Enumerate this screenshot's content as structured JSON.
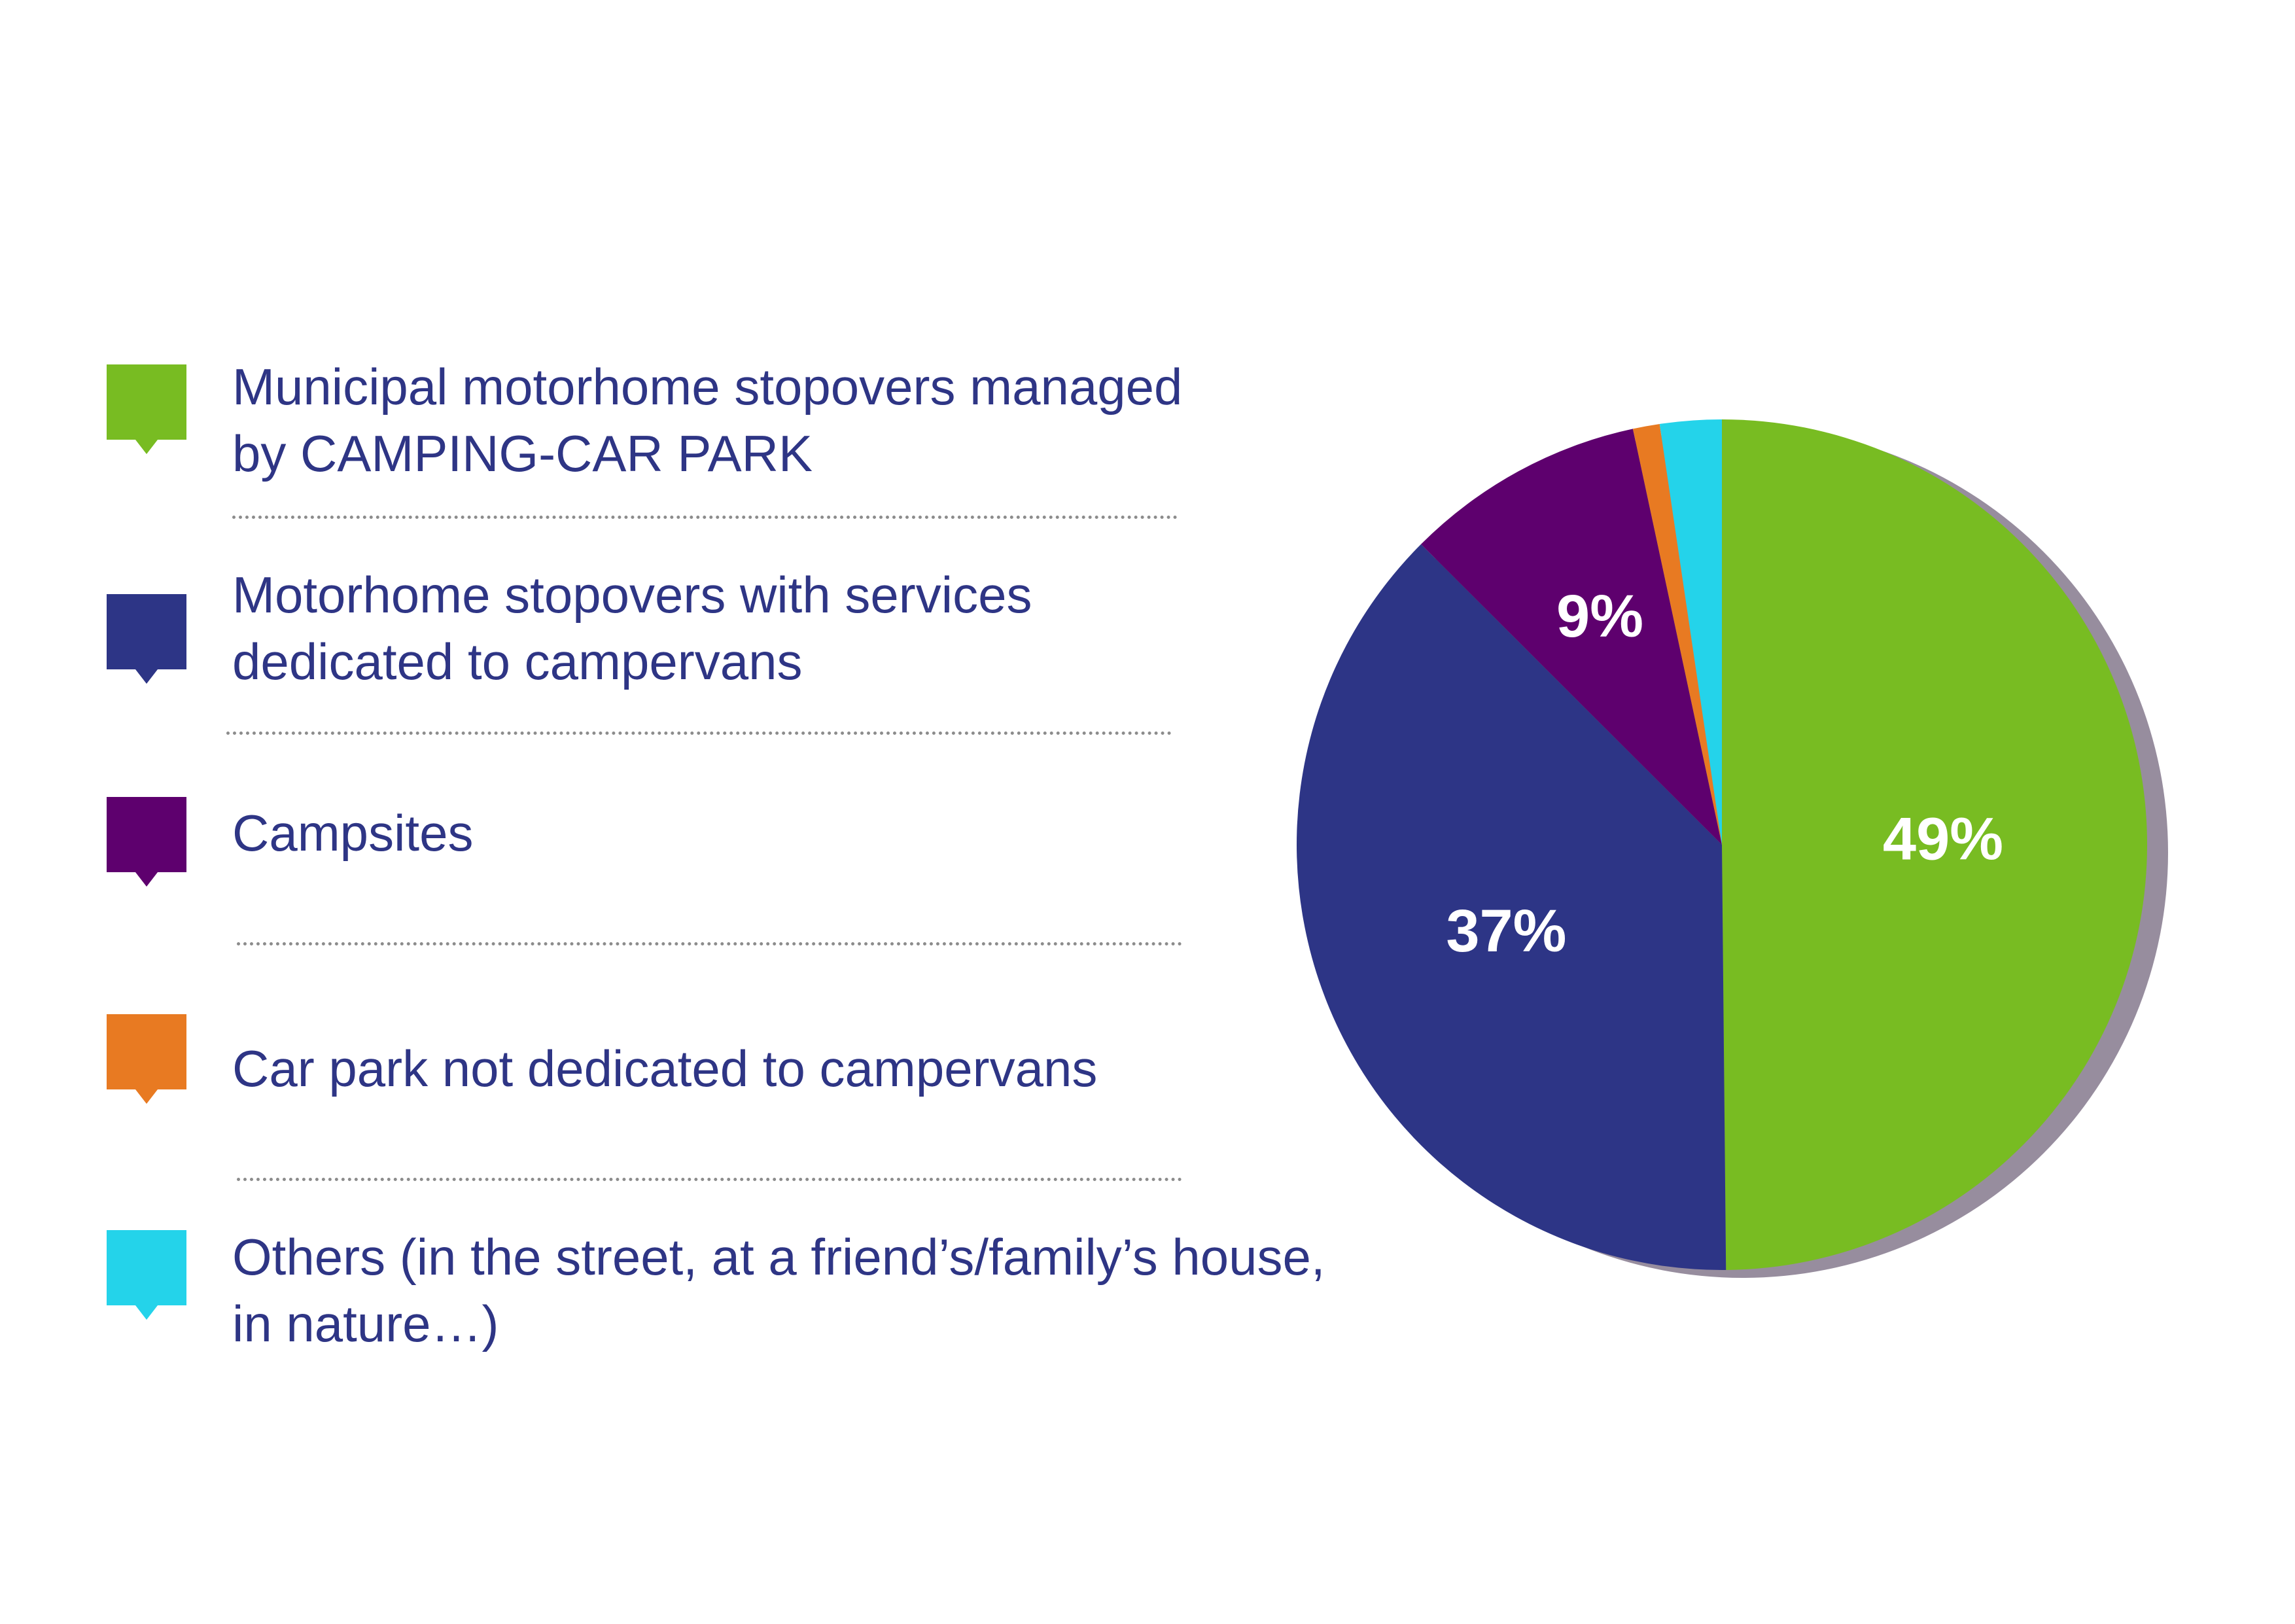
{
  "chart_data": {
    "type": "pie",
    "slices": [
      {
        "label": "Municipal motorhome stopovers managed\nby CAMPING-CAR PARK",
        "value": 49,
        "value_label": "49%",
        "color": "#78bc22"
      },
      {
        "label": "Motorhome stopovers with services\ndedicated to campervans",
        "value": 37,
        "value_label": "37%",
        "color": "#2d3586"
      },
      {
        "label": "Campsites",
        "value": 9,
        "value_label": "9%",
        "color": "#5e006e"
      },
      {
        "label": "Car park not dedicated to campervans",
        "value": 1,
        "value_label": "",
        "color": "#e87a22"
      },
      {
        "label": "Others (in the street, at a friend’s/family’s house,\nin nature…)",
        "value": 2.3,
        "value_label": "",
        "color": "#24d3ea"
      }
    ],
    "start_angle_deg": 0,
    "direction": "clockwise",
    "shadow_color": "#978d9e",
    "legend_position": "left"
  }
}
